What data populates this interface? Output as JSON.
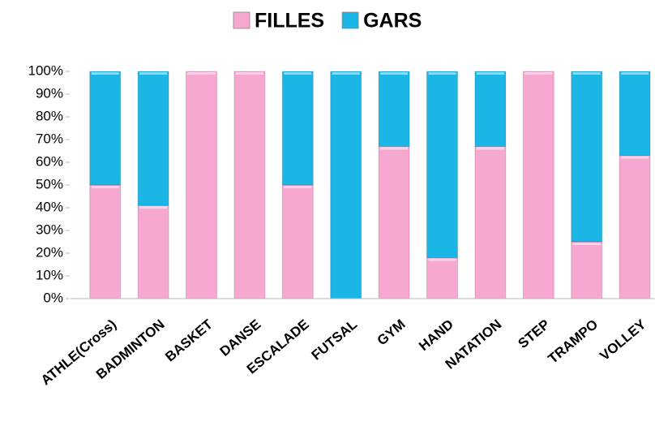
{
  "chart_data": {
    "type": "bar",
    "stacked": true,
    "categories": [
      "ATHLE(Cross)",
      "BADMINTON",
      "BASKET",
      "DANSE",
      "ESCALADE",
      "FUTSAL",
      "GYM",
      "HAND",
      "NATATION",
      "STEP",
      "TRAMPO",
      "VOLLEY"
    ],
    "series": [
      {
        "name": "FILLES",
        "color": "#f7a8d0",
        "values": [
          50,
          41,
          100,
          100,
          50,
          0,
          67,
          18,
          67,
          100,
          25,
          63
        ]
      },
      {
        "name": "GARS",
        "color": "#1cb6e6",
        "values": [
          50,
          59,
          0,
          0,
          50,
          100,
          33,
          82,
          33,
          0,
          75,
          37
        ]
      }
    ],
    "ylim": [
      0,
      100
    ],
    "yticks": [
      {
        "value": 0,
        "label": "0%"
      },
      {
        "value": 10,
        "label": "10%"
      },
      {
        "value": 20,
        "label": "20%"
      },
      {
        "value": 30,
        "label": "30%"
      },
      {
        "value": 40,
        "label": "40%"
      },
      {
        "value": 50,
        "label": "50%"
      },
      {
        "value": 60,
        "label": "60%"
      },
      {
        "value": 70,
        "label": "70%"
      },
      {
        "value": 80,
        "label": "80%"
      },
      {
        "value": 90,
        "label": "90%"
      },
      {
        "value": 100,
        "label": "100%"
      }
    ],
    "grid": false,
    "legend": "top"
  }
}
